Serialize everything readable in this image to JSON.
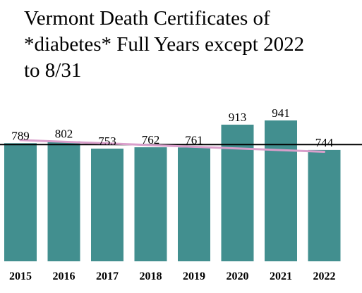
{
  "chart_data": {
    "type": "bar",
    "title_lines": [
      "Vermont Death Certificates of",
      "*diabetes* Full Years except 2022",
      "to 8/31"
    ],
    "categories": [
      "2015",
      "2016",
      "2017",
      "2018",
      "2019",
      "2020",
      "2021",
      "2022"
    ],
    "values": [
      789,
      802,
      753,
      762,
      761,
      913,
      941,
      744
    ],
    "xlabel": "",
    "ylabel": "",
    "ylim": [
      0,
      1000
    ],
    "y_axis_shown": false,
    "grid": false,
    "reference_line": {
      "y": 780
    },
    "trend_line": {
      "start": 810,
      "end": 732
    },
    "colors": {
      "bar": "#428f8f",
      "trend_line": "#d99fcb",
      "reference_line": "#000000"
    }
  }
}
